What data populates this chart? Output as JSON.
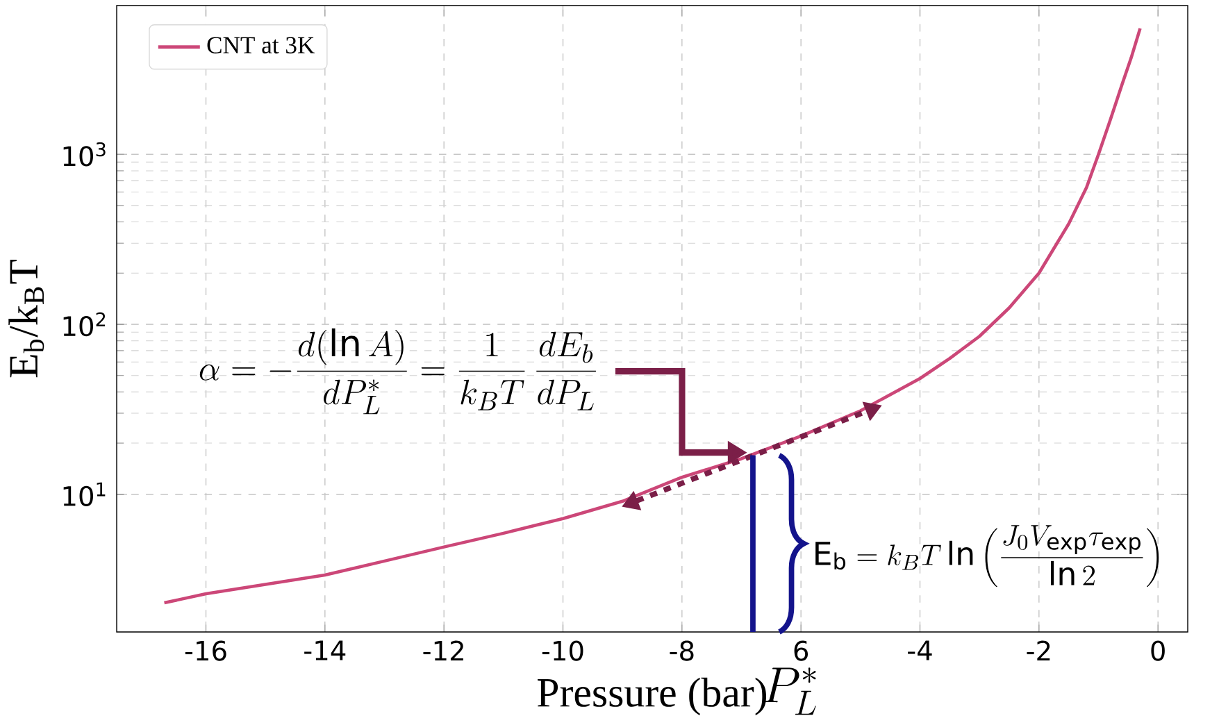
{
  "chart_data": {
    "type": "line",
    "xlabel": "Pressure (bar)",
    "ylabel": "E$_{b}$/k$_{B}$T",
    "x": [
      -16.7,
      -16,
      -15,
      -14,
      -13,
      -12,
      -11,
      -10,
      -9,
      -8,
      -7,
      -6,
      -5,
      -4,
      -3.5,
      -3,
      -2.5,
      -2,
      -1.5,
      -1.2,
      -1,
      -0.8,
      -0.6,
      -0.45,
      -0.3
    ],
    "series": [
      {
        "name": "CNT at 3K",
        "color": "#cc4778",
        "values": [
          2.3,
          2.6,
          2.95,
          3.35,
          4.05,
          4.9,
          5.9,
          7.2,
          9.1,
          12.6,
          16.2,
          22,
          31,
          48,
          63,
          85,
          125,
          200,
          390,
          640,
          1000,
          1600,
          2600,
          3700,
          5500
        ]
      }
    ],
    "xlim": [
      -17.5,
      0.5
    ],
    "ylim": [
      1.55,
      7500
    ],
    "log": "y",
    "xticks": [
      -16,
      -14,
      -12,
      -10,
      -8,
      {
        "value": -6,
        "label": "6"
      },
      -4,
      -2,
      0
    ],
    "yticks": [
      {
        "value": 10,
        "label": "10$^{1}$"
      },
      {
        "value": 100,
        "label": "10$^{2}$"
      },
      {
        "value": 1000,
        "label": "10$^{3}$"
      }
    ],
    "grid": true,
    "legend": "top left",
    "marker": "none",
    "line_style": "solid",
    "annotations": [
      "\\alpha = -\\frac{d(\\ln A)}{dP_L^*} = \\frac{1}{k_BT}\\,\\frac{dE_b}{dP_L}",
      "\\mathrm{E_b} = k_BT\\ln\\left(\\frac{J_0V_{\\exp}\\tau_{\\exp}}{\\ln 2}\\right)",
      "P_L^*"
    ]
  }
}
